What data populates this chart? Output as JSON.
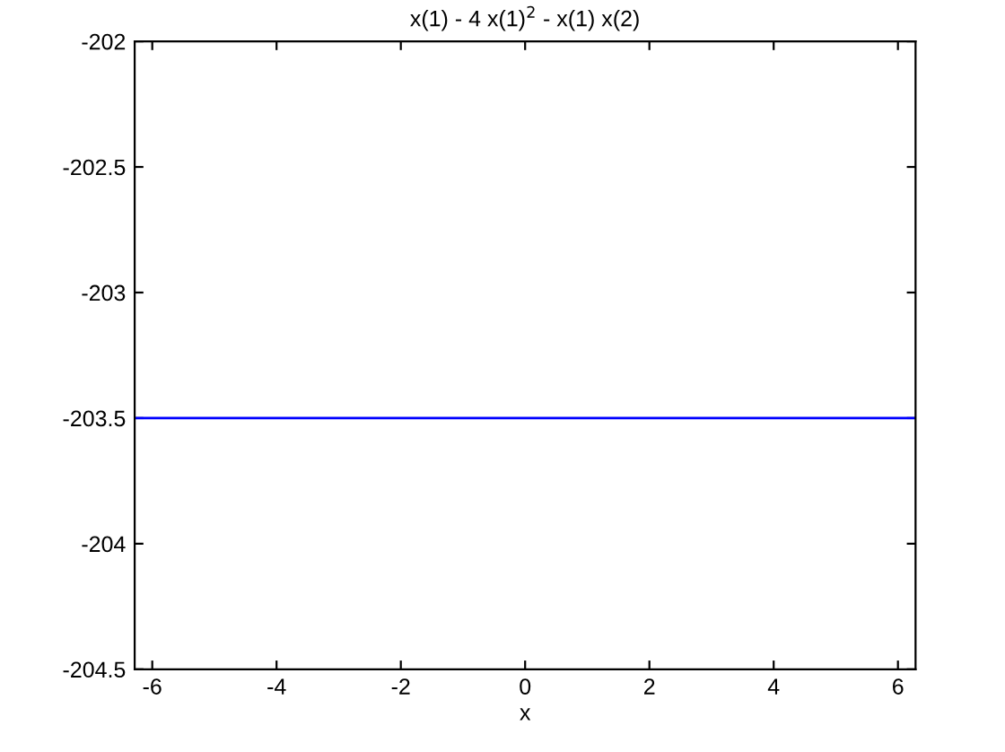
{
  "chart_data": {
    "type": "line",
    "title": "x(1) - 4 x(1)$^{2}$ - x(1) x(2)",
    "xlabel": "x",
    "x": [
      -6.2832,
      6.2832
    ],
    "series": [
      {
        "color": "#0000ff",
        "values": [
          -203.5,
          -203.5
        ]
      }
    ],
    "xlim": [
      -6.2832,
      6.2832
    ],
    "xticks": [
      -6,
      -4,
      -2,
      0,
      2,
      4,
      6
    ],
    "ylim": [
      -204.5,
      -202
    ],
    "yticks": [
      -204.5,
      -204,
      -203.5,
      -203,
      -202.5,
      -202
    ]
  }
}
